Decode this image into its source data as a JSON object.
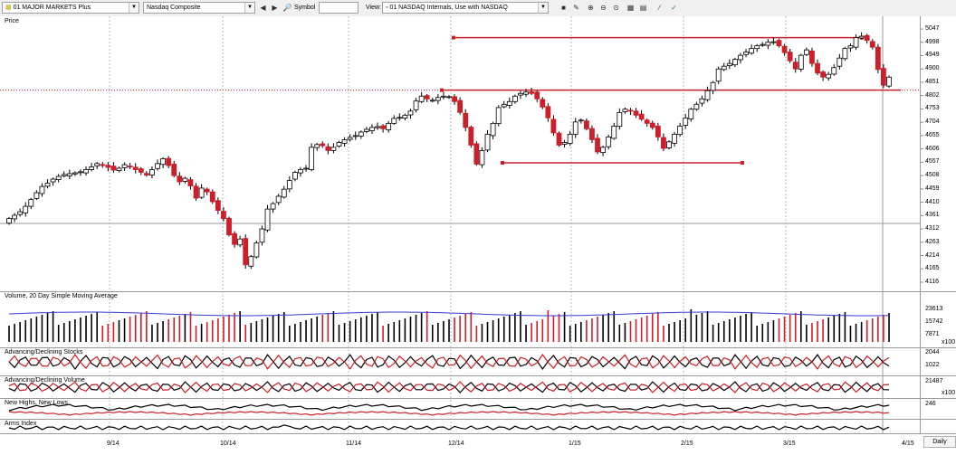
{
  "toolbar": {
    "layout_combo": "01 MAJOR MARKETS Plus",
    "symbol_combo": "Nasdaq Composite",
    "symbol_label": "Symbol",
    "symbol_value": "",
    "view_label": "View:",
    "view_combo": "01 NASDAQ Internals, Use with NASDAQ"
  },
  "panels": {
    "price": "Price",
    "volume": "Volume, 20 Day Simple Moving Average",
    "adv_stocks": "Advancing/Declining Stocks",
    "adv_volume": "Advancing/Declining Volume",
    "highs_lows": "New Highs, New Lows",
    "arms": "Arms Index"
  },
  "colors": {
    "up": "#ffffff",
    "down": "#cc1f2a",
    "line": "#cc1f2a",
    "ma": "#3a3acd",
    "black": "#000000"
  },
  "price_axis": [
    "5047",
    "4998",
    "4949",
    "4900",
    "4851",
    "4802",
    "4753",
    "4704",
    "4655",
    "4606",
    "4557",
    "4508",
    "4459",
    "4410",
    "4361",
    "4312",
    "4263",
    "4214",
    "4165",
    "4116"
  ],
  "volume_axis": [
    "23613",
    "15742",
    "7871"
  ],
  "volume_unit": "x100",
  "adv_stocks_axis": [
    "2044",
    "1022"
  ],
  "adv_volume_axis": [
    "21487"
  ],
  "adv_volume_unit": "x100",
  "highs_lows_axis": [
    "246"
  ],
  "x_dates": [
    "9/14",
    "10/14",
    "11/14",
    "12/14",
    "1/15",
    "2/15",
    "3/15",
    "4/15"
  ],
  "timeframe": "Daily",
  "chart_data": {
    "type": "candlestick",
    "price_range": [
      4116,
      5047
    ],
    "levels": {
      "resistance_top": 5015,
      "support_mid": 4822,
      "support_low": 4555
    },
    "closes": [
      4350,
      4362,
      4375,
      4395,
      4420,
      4445,
      4468,
      4480,
      4495,
      4505,
      4512,
      4515,
      4518,
      4522,
      4530,
      4540,
      4552,
      4545,
      4538,
      4528,
      4535,
      4548,
      4540,
      4530,
      4520,
      4510,
      4530,
      4552,
      4570,
      4545,
      4508,
      4485,
      4498,
      4470,
      4425,
      4462,
      4448,
      4412,
      4380,
      4350,
      4290,
      4255,
      4275,
      4180,
      4210,
      4260,
      4312,
      4385,
      4405,
      4432,
      4458,
      4490,
      4520,
      4530,
      4535,
      4612,
      4622,
      4618,
      4600,
      4612,
      4630,
      4640,
      4648,
      4655,
      4668,
      4678,
      4685,
      4688,
      4680,
      4700,
      4718,
      4722,
      4730,
      4745,
      4782,
      4800,
      4790,
      4785,
      4795,
      4800,
      4798,
      4780,
      4740,
      4685,
      4620,
      4550,
      4600,
      4660,
      4700,
      4758,
      4770,
      4780,
      4800,
      4810,
      4815,
      4810,
      4790,
      4760,
      4720,
      4665,
      4620,
      4630,
      4660,
      4705,
      4712,
      4680,
      4640,
      4595,
      4612,
      4650,
      4690,
      4740,
      4752,
      4745,
      4730,
      4715,
      4700,
      4685,
      4650,
      4608,
      4632,
      4660,
      4690,
      4720,
      4752,
      4770,
      4790,
      4820,
      4850,
      4900,
      4910,
      4920,
      4935,
      4950,
      4962,
      4975,
      4985,
      4990,
      4998,
      5000,
      4985,
      4960,
      4930,
      4900,
      4950,
      4970,
      4920,
      4885,
      4870,
      4880,
      4905,
      4940,
      4975,
      4985,
      5015,
      5020,
      5005,
      4980,
      4898,
      4840,
      4870
    ]
  }
}
